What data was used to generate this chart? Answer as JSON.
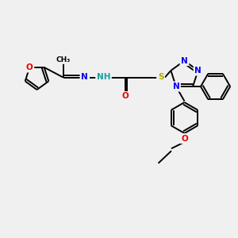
{
  "bg_color": "#f0f0f0",
  "figsize": [
    3.0,
    3.0
  ],
  "dpi": 100,
  "atom_colors": {
    "C": "#000000",
    "N": "#0000ee",
    "O": "#ee0000",
    "S": "#aaaa00",
    "H": "#1a9e9e"
  },
  "bond_color": "#000000",
  "bond_width": 1.4,
  "font_size": 7.5,
  "xlim": [
    0,
    10
  ],
  "ylim": [
    0,
    10
  ]
}
